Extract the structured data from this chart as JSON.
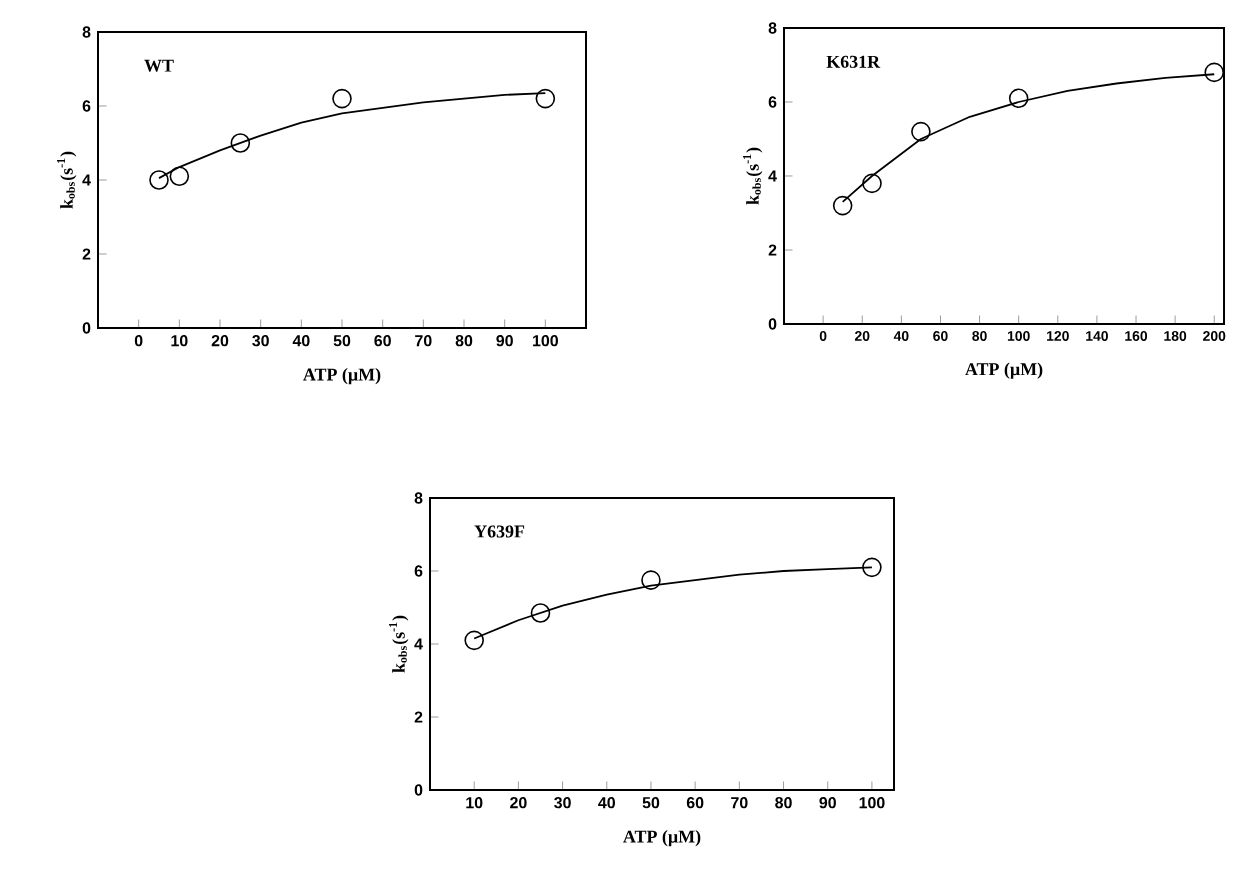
{
  "chart_data": [
    {
      "type": "scatter",
      "title": "WT",
      "xlabel": "ATP (µM)",
      "ylabel": "k$_{obs}$(s$^{-1}$)",
      "xlim": [
        -10,
        110
      ],
      "ylim": [
        0,
        8
      ],
      "xticks": [
        0,
        10,
        20,
        30,
        40,
        50,
        60,
        70,
        80,
        90,
        100
      ],
      "yticks": [
        0,
        2,
        4,
        6,
        8
      ],
      "series": [
        {
          "marker": "circle",
          "color": "#000000",
          "x": [
            5,
            10,
            25,
            50,
            100
          ],
          "values": [
            4.0,
            4.1,
            5.0,
            6.2,
            6.2
          ]
        },
        {
          "type": "line",
          "marker": "none",
          "color": "#000000",
          "x": [
            5,
            10,
            20,
            30,
            40,
            50,
            60,
            70,
            80,
            90,
            100
          ],
          "values": [
            4.05,
            4.35,
            4.8,
            5.2,
            5.55,
            5.8,
            5.95,
            6.1,
            6.2,
            6.3,
            6.35
          ]
        }
      ]
    },
    {
      "type": "scatter",
      "title": "K631R",
      "xlabel": "ATP (µM)",
      "ylabel": "k$_{obs}$(s$^{-1}$)",
      "xlim": [
        -20,
        205
      ],
      "ylim": [
        0,
        8
      ],
      "xticks": [
        0,
        20,
        40,
        60,
        80,
        100,
        120,
        140,
        160,
        180,
        200
      ],
      "yticks": [
        0,
        2,
        4,
        6,
        8
      ],
      "series": [
        {
          "marker": "circle",
          "color": "#000000",
          "x": [
            10,
            25,
            50,
            100,
            200
          ],
          "values": [
            3.2,
            3.8,
            5.2,
            6.1,
            6.8
          ]
        },
        {
          "type": "line",
          "marker": "none",
          "color": "#000000",
          "x": [
            10,
            25,
            50,
            75,
            100,
            125,
            150,
            175,
            200
          ],
          "values": [
            3.3,
            4.0,
            5.0,
            5.6,
            6.0,
            6.3,
            6.5,
            6.65,
            6.75
          ]
        }
      ]
    },
    {
      "type": "scatter",
      "title": "Y639F",
      "xlabel": "ATP (µM)",
      "ylabel": "k$_{obs}$(s$^{-1}$)",
      "xlim": [
        0,
        105
      ],
      "ylim": [
        0,
        8
      ],
      "xticks": [
        10,
        20,
        30,
        40,
        50,
        60,
        70,
        80,
        90,
        100
      ],
      "yticks": [
        0,
        2,
        4,
        6,
        8
      ],
      "series": [
        {
          "marker": "circle",
          "color": "#000000",
          "x": [
            10,
            25,
            50,
            100
          ],
          "values": [
            4.1,
            4.85,
            5.75,
            6.1
          ]
        },
        {
          "type": "line",
          "marker": "none",
          "color": "#000000",
          "x": [
            10,
            20,
            30,
            40,
            50,
            60,
            70,
            80,
            90,
            100
          ],
          "values": [
            4.15,
            4.65,
            5.05,
            5.35,
            5.6,
            5.75,
            5.9,
            6.0,
            6.05,
            6.1
          ]
        }
      ]
    }
  ]
}
